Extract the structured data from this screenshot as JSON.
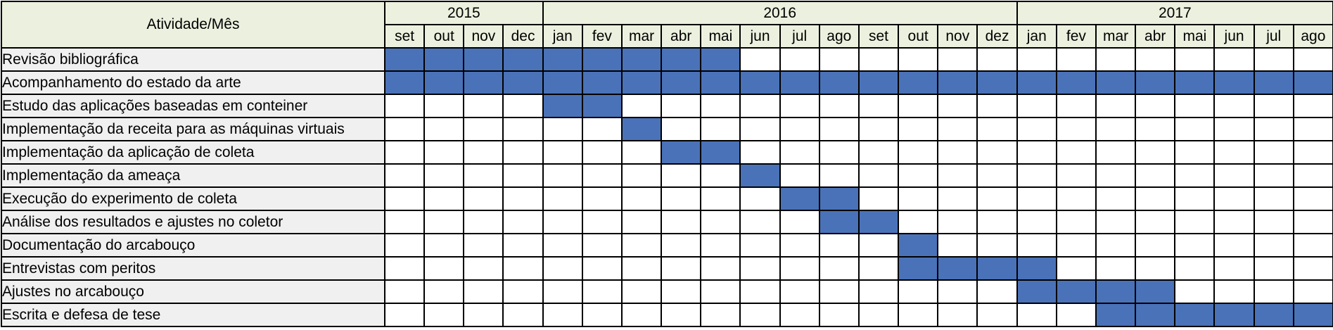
{
  "header": {
    "corner_label": "Atividade/Mês",
    "years": [
      {
        "label": "2015",
        "span": 4
      },
      {
        "label": "2016",
        "span": 12
      },
      {
        "label": "2017",
        "span": 8
      }
    ],
    "months": [
      "set",
      "out",
      "nov",
      "dec",
      "jan",
      "fev",
      "mar",
      "abr",
      "mai",
      "jun",
      "jul",
      "ago",
      "set",
      "out",
      "nov",
      "dez",
      "jan",
      "fev",
      "mar",
      "abr",
      "mai",
      "jun",
      "jul",
      "ago"
    ]
  },
  "activities": [
    {
      "label": "Revisão bibliográfica",
      "active": [
        0,
        1,
        2,
        3,
        4,
        5,
        6,
        7,
        8
      ]
    },
    {
      "label": "Acompanhamento do estado da arte",
      "active": [
        0,
        1,
        2,
        3,
        4,
        5,
        6,
        7,
        8,
        9,
        10,
        11,
        12,
        13,
        14,
        15,
        16,
        17,
        18,
        19,
        20,
        21,
        22,
        23
      ]
    },
    {
      "label": "Estudo das aplicações baseadas em conteiner",
      "active": [
        4,
        5
      ]
    },
    {
      "label": "Implementação da receita para as máquinas virtuais",
      "active": [
        6
      ]
    },
    {
      "label": "Implementação da aplicação de coleta",
      "active": [
        7,
        8
      ]
    },
    {
      "label": "Implementação da ameaça",
      "active": [
        9
      ]
    },
    {
      "label": "Execução do experimento de coleta",
      "active": [
        10,
        11
      ]
    },
    {
      "label": "Análise dos resultados e ajustes no coletor",
      "active": [
        11,
        12
      ]
    },
    {
      "label": "Documentação do arcabouço",
      "active": [
        13
      ]
    },
    {
      "label": "Entrevistas com peritos",
      "active": [
        13,
        14,
        15,
        16
      ]
    },
    {
      "label": "Ajustes no arcabouço",
      "active": [
        16,
        17,
        18,
        19
      ]
    },
    {
      "label": "Escrita e defesa de tese",
      "active": [
        18,
        19,
        20,
        21,
        22,
        23
      ]
    }
  ],
  "colors": {
    "header_bg": "#ebf1de",
    "label_bg": "#f0f0f0",
    "filled_cell": "#4a72b8",
    "grid_line": "#000000"
  }
}
